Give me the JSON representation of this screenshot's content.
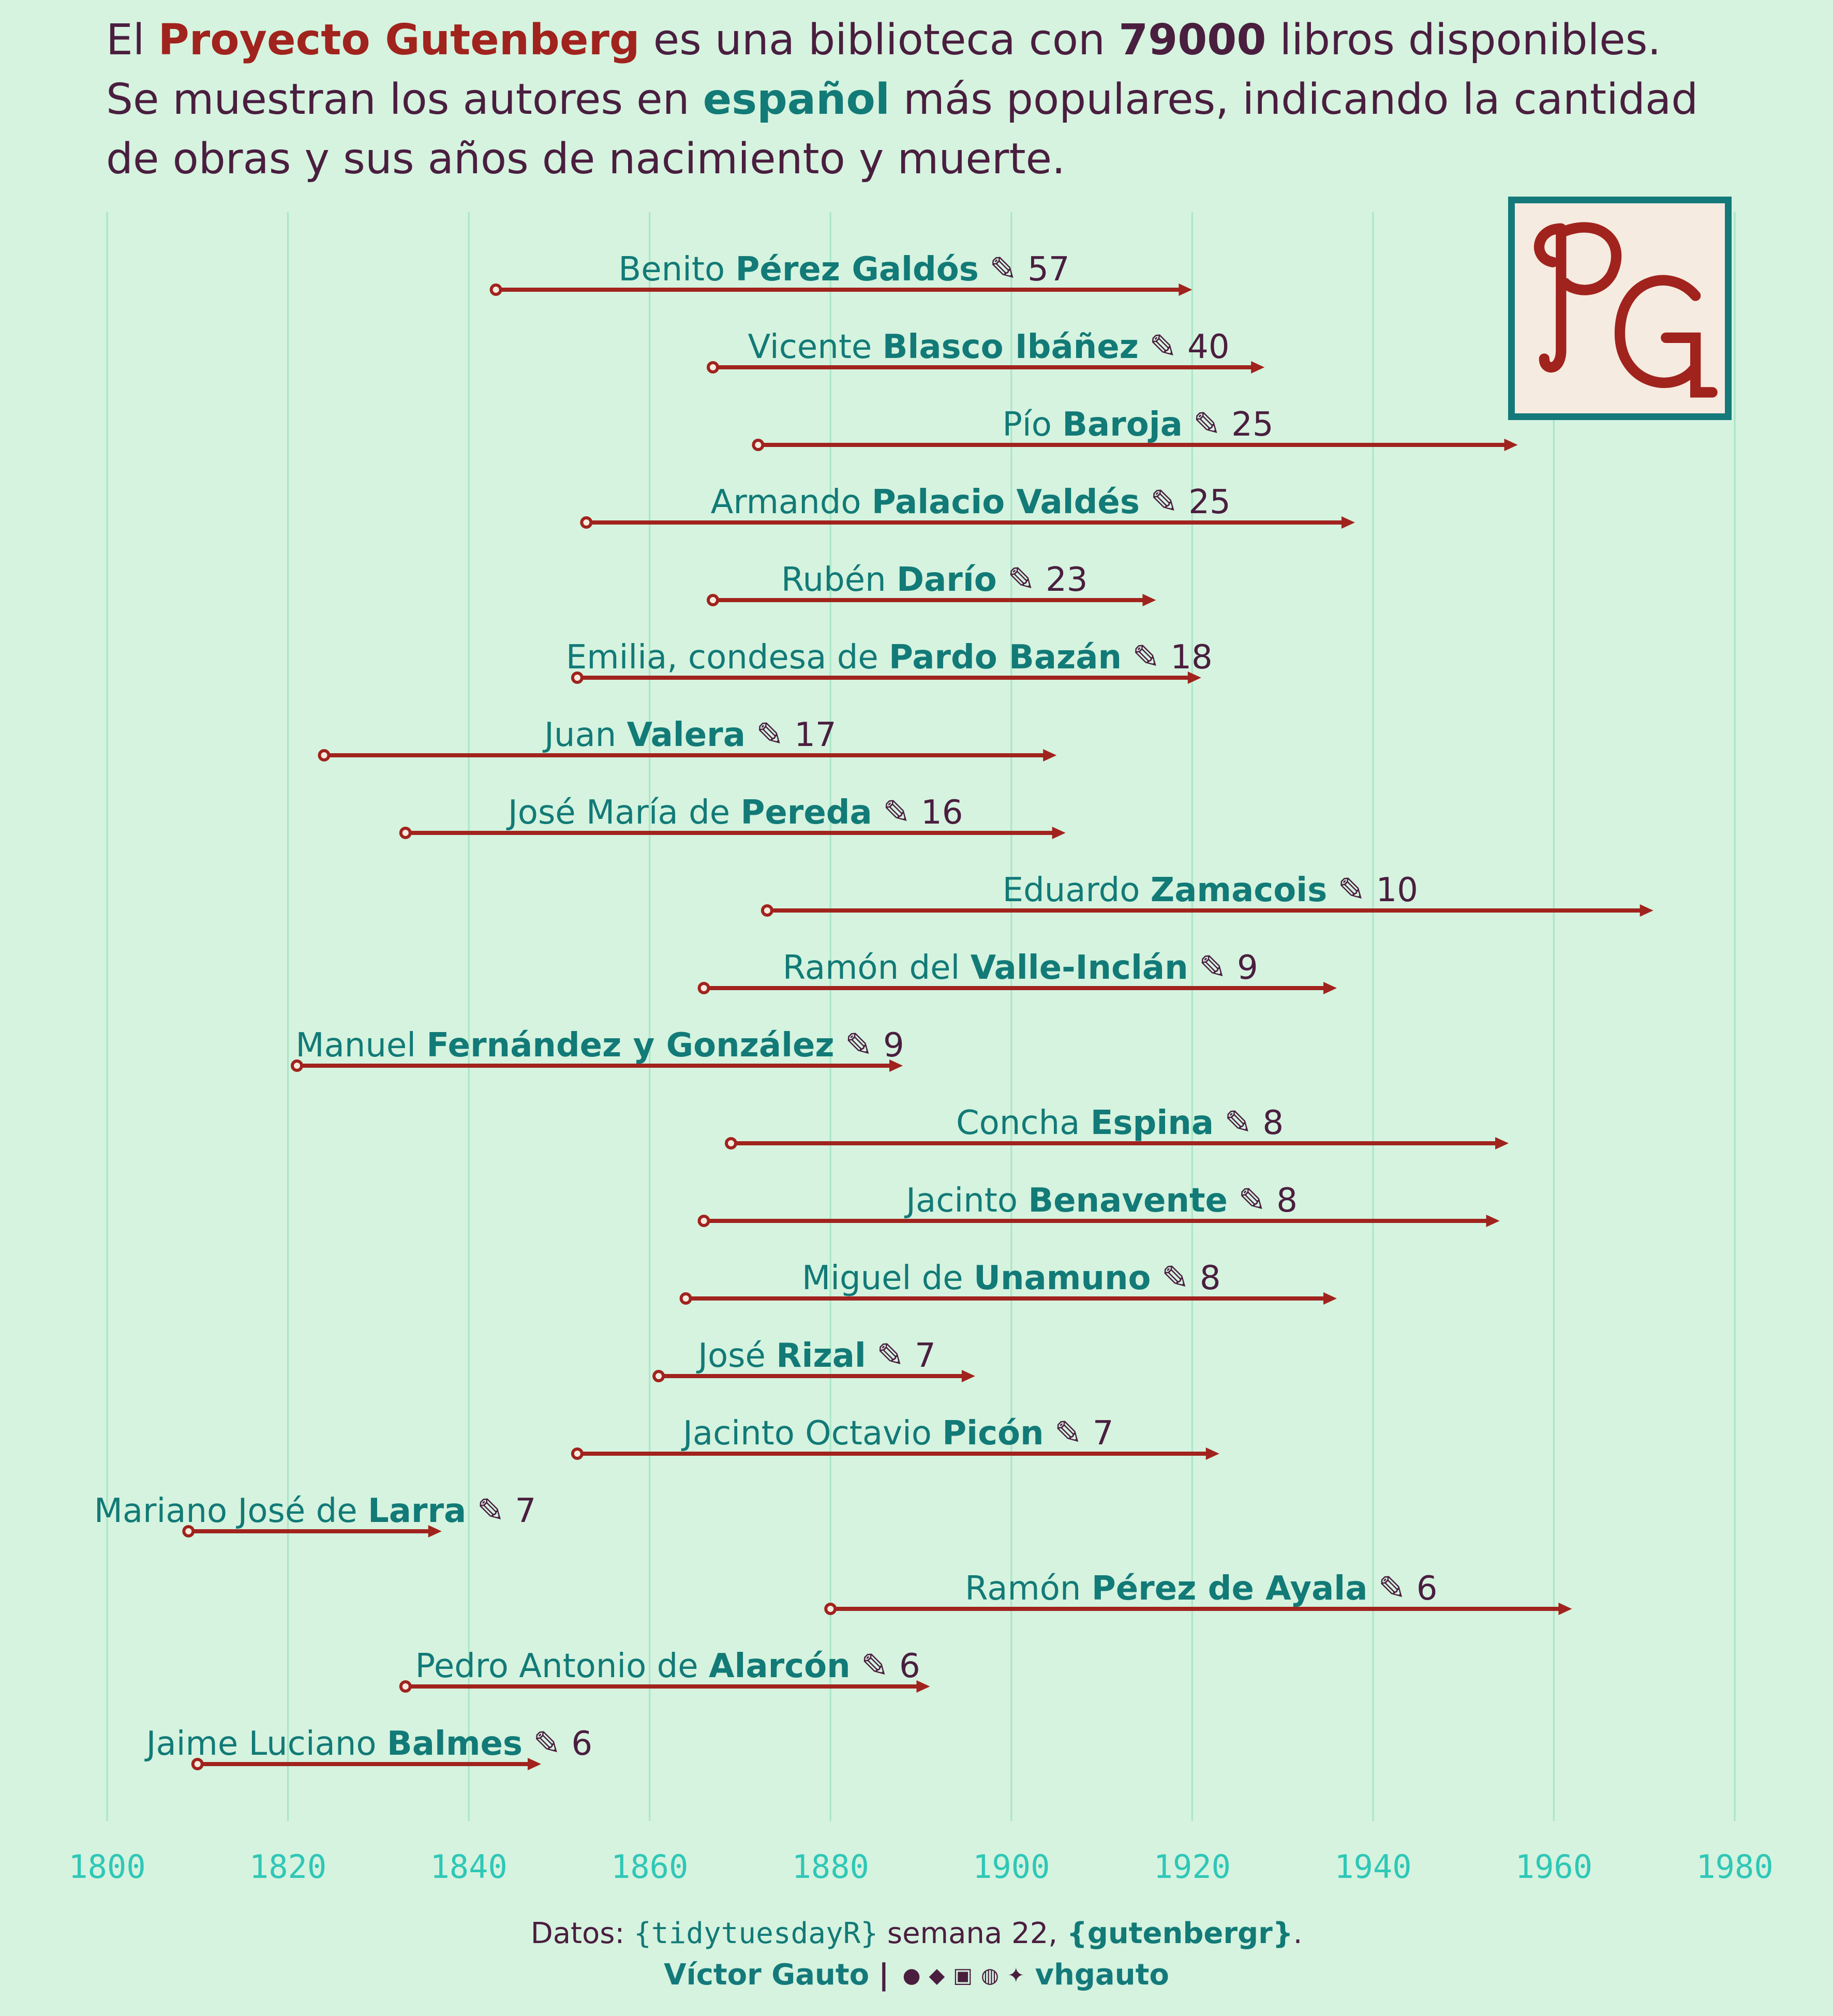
{
  "title": {
    "p1": "El ",
    "highlight1": "Proyecto Gutenberg",
    "p2": " es una biblioteca con ",
    "highlight2": "79000",
    "p3": " libros disponibles.",
    "p4": "Se muestran los autores en ",
    "highlight3": "español",
    "p5": " más populares, indicando la cantidad",
    "p6": "de obras y sus años de nacimiento y muerte."
  },
  "logo": {
    "text": "PG"
  },
  "caption": {
    "datos_label": "Datos: ",
    "source1": "{tidytuesdayR}",
    "mid": " semana 22, ",
    "source2": "{gutenbergr}",
    "end": ".",
    "author": "Víctor Gauto",
    "separator": "|",
    "handle": "vhgauto",
    "icons": [
      "github-icon",
      "twitter-icon",
      "instagram-icon",
      "mastodon-icon",
      "bluesky-icon"
    ]
  },
  "colors": {
    "background": "#d5f3df",
    "segment": "#a1231d",
    "label_teal": "#127a77",
    "count": "#4a1e3f",
    "grid": "#a8e6c6",
    "tick": "#2fc7b7"
  },
  "chart_data": {
    "type": "range",
    "xlim": [
      1800,
      1980
    ],
    "x_ticks": [
      "1800",
      "1820",
      "1840",
      "1860",
      "1880",
      "1900",
      "1920",
      "1940",
      "1960",
      "1980"
    ],
    "grid": "vertical",
    "authors": [
      {
        "first": "Benito",
        "last": "Pérez Galdós",
        "works": "57",
        "birth": 1843,
        "death": 1920
      },
      {
        "first": "Vicente",
        "last": "Blasco Ibáñez",
        "works": "40",
        "birth": 1867,
        "death": 1928
      },
      {
        "first": "Pío",
        "last": "Baroja",
        "works": "25",
        "birth": 1872,
        "death": 1956
      },
      {
        "first": "Armando",
        "last": "Palacio Valdés",
        "works": "25",
        "birth": 1853,
        "death": 1938
      },
      {
        "first": "Rubén",
        "last": "Darío",
        "works": "23",
        "birth": 1867,
        "death": 1916
      },
      {
        "first": "Emilia, condesa de",
        "last": "Pardo Bazán",
        "works": "18",
        "birth": 1852,
        "death": 1921
      },
      {
        "first": "Juan",
        "last": "Valera",
        "works": "17",
        "birth": 1824,
        "death": 1905
      },
      {
        "first": "José María de",
        "last": "Pereda",
        "works": "16",
        "birth": 1833,
        "death": 1906
      },
      {
        "first": "Eduardo",
        "last": "Zamacois",
        "works": "10",
        "birth": 1873,
        "death": 1971
      },
      {
        "first": "Ramón del",
        "last": "Valle-Inclán",
        "works": "9",
        "birth": 1866,
        "death": 1936
      },
      {
        "first": "Manuel",
        "last": "Fernández y González",
        "works": "9",
        "birth": 1821,
        "death": 1888
      },
      {
        "first": "Concha",
        "last": "Espina",
        "works": "8",
        "birth": 1869,
        "death": 1955
      },
      {
        "first": "Jacinto",
        "last": "Benavente",
        "works": "8",
        "birth": 1866,
        "death": 1954
      },
      {
        "first": "Miguel de",
        "last": "Unamuno",
        "works": "8",
        "birth": 1864,
        "death": 1936
      },
      {
        "first": "José",
        "last": "Rizal",
        "works": "7",
        "birth": 1861,
        "death": 1896
      },
      {
        "first": "Jacinto Octavio",
        "last": "Picón",
        "works": "7",
        "birth": 1852,
        "death": 1923
      },
      {
        "first": "Mariano José de",
        "last": "Larra",
        "works": "7",
        "birth": 1809,
        "death": 1837
      },
      {
        "first": "Ramón",
        "last": "Pérez de Ayala",
        "works": "6",
        "birth": 1880,
        "death": 1962
      },
      {
        "first": "Pedro Antonio de",
        "last": "Alarcón",
        "works": "6",
        "birth": 1833,
        "death": 1891
      },
      {
        "first": "Jaime Luciano",
        "last": "Balmes",
        "works": "6",
        "birth": 1810,
        "death": 1848
      }
    ]
  }
}
